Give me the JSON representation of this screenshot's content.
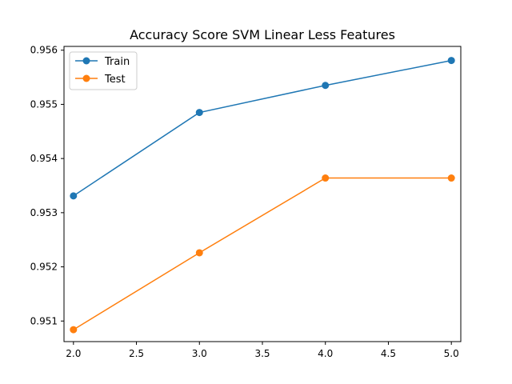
{
  "chart_data": {
    "type": "line",
    "title": "Accuracy Score SVM Linear Less Features",
    "xlabel": "",
    "ylabel": "",
    "xlim": [
      1.925,
      5.075
    ],
    "ylim": [
      0.95062,
      0.95607
    ],
    "x_ticks": [
      2.0,
      2.5,
      3.0,
      3.5,
      4.0,
      4.5,
      5.0
    ],
    "y_ticks": [
      0.951,
      0.952,
      0.953,
      0.954,
      0.955,
      0.956
    ],
    "grid": false,
    "legend_position": "top-left",
    "marker": "circle",
    "series": [
      {
        "name": "Train",
        "color": "#1f77b4",
        "x": [
          2.0,
          3.0,
          4.0,
          5.0
        ],
        "values": [
          0.95331,
          0.95485,
          0.95535,
          0.95581
        ]
      },
      {
        "name": "Test",
        "color": "#ff7f0e",
        "x": [
          2.0,
          3.0,
          4.0,
          5.0
        ],
        "values": [
          0.95084,
          0.95226,
          0.95364,
          0.95364
        ]
      }
    ]
  }
}
